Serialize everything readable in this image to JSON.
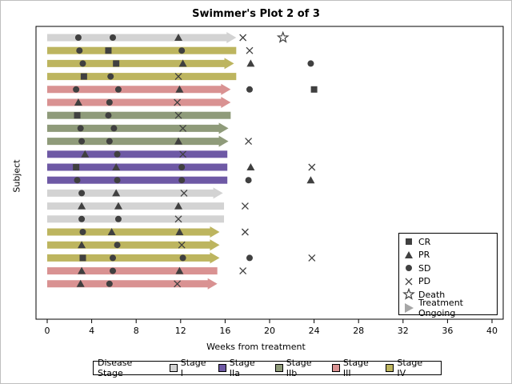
{
  "chart_data": {
    "type": "swimmer",
    "title": "Swimmer's Plot 2 of 3",
    "xlabel": "Weeks from treatment",
    "ylabel": "Subject",
    "xlim": [
      0,
      40
    ],
    "xticks": [
      0,
      4,
      8,
      12,
      16,
      20,
      24,
      28,
      32,
      36,
      40
    ],
    "grid": false,
    "legend_position": "bottom-right",
    "legend": [
      {
        "symbol": "square",
        "label": "CR"
      },
      {
        "symbol": "triangle",
        "label": "PR"
      },
      {
        "symbol": "circle",
        "label": "SD"
      },
      {
        "symbol": "x",
        "label": "PD"
      },
      {
        "symbol": "star",
        "label": "Death"
      },
      {
        "symbol": "arrow",
        "label": "Treatment Ongoing"
      }
    ],
    "stage_legend_title": "Disease Stage",
    "stages": [
      {
        "name": "Stage I",
        "color": "#d3d3d3"
      },
      {
        "name": "Stage IIa",
        "color": "#6e59a5"
      },
      {
        "name": "Stage IIb",
        "color": "#8f9b7a"
      },
      {
        "name": "Stage III",
        "color": "#d99292"
      },
      {
        "name": "Stage IV",
        "color": "#bdb55f"
      }
    ],
    "subjects": [
      {
        "stage": 0,
        "end": 17.0,
        "ongoing": true,
        "events": [
          [
            "circle",
            2.8
          ],
          [
            "circle",
            5.9
          ],
          [
            "triangle",
            11.8
          ],
          [
            "x",
            17.6
          ],
          [
            "star",
            21.2
          ]
        ]
      },
      {
        "stage": 4,
        "end": 17.0,
        "ongoing": false,
        "events": [
          [
            "circle",
            2.9
          ],
          [
            "square",
            5.5
          ],
          [
            "circle",
            12.1
          ],
          [
            "x",
            18.2
          ]
        ]
      },
      {
        "stage": 4,
        "end": 16.8,
        "ongoing": true,
        "events": [
          [
            "circle",
            3.2
          ],
          [
            "square",
            6.2
          ],
          [
            "triangle",
            12.2
          ],
          [
            "triangle",
            18.3
          ],
          [
            "circle",
            23.7
          ]
        ]
      },
      {
        "stage": 4,
        "end": 17.0,
        "ongoing": false,
        "events": [
          [
            "square",
            3.3
          ],
          [
            "circle",
            5.7
          ],
          [
            "x",
            11.8
          ]
        ]
      },
      {
        "stage": 3,
        "end": 16.5,
        "ongoing": true,
        "events": [
          [
            "circle",
            2.6
          ],
          [
            "circle",
            6.4
          ],
          [
            "triangle",
            11.9
          ],
          [
            "circle",
            18.2
          ],
          [
            "square",
            24.0
          ]
        ]
      },
      {
        "stage": 3,
        "end": 16.5,
        "ongoing": true,
        "events": [
          [
            "triangle",
            2.8
          ],
          [
            "circle",
            5.6
          ],
          [
            "x",
            11.7
          ]
        ]
      },
      {
        "stage": 2,
        "end": 16.5,
        "ongoing": false,
        "events": [
          [
            "square",
            2.7
          ],
          [
            "circle",
            5.5
          ],
          [
            "x",
            11.8
          ]
        ]
      },
      {
        "stage": 2,
        "end": 16.3,
        "ongoing": true,
        "events": [
          [
            "circle",
            3.0
          ],
          [
            "circle",
            6.0
          ],
          [
            "x",
            12.2
          ]
        ]
      },
      {
        "stage": 2,
        "end": 16.3,
        "ongoing": true,
        "events": [
          [
            "circle",
            3.1
          ],
          [
            "circle",
            5.6
          ],
          [
            "triangle",
            11.8
          ],
          [
            "x",
            18.1
          ]
        ]
      },
      {
        "stage": 1,
        "end": 16.2,
        "ongoing": false,
        "events": [
          [
            "triangle",
            3.4
          ],
          [
            "circle",
            6.3
          ],
          [
            "x",
            12.2
          ]
        ]
      },
      {
        "stage": 1,
        "end": 16.2,
        "ongoing": false,
        "events": [
          [
            "square",
            2.6
          ],
          [
            "triangle",
            6.2
          ],
          [
            "circle",
            12.1
          ],
          [
            "triangle",
            18.3
          ],
          [
            "x",
            23.8
          ]
        ]
      },
      {
        "stage": 1,
        "end": 16.2,
        "ongoing": false,
        "events": [
          [
            "circle",
            2.7
          ],
          [
            "circle",
            6.3
          ],
          [
            "circle",
            12.1
          ],
          [
            "circle",
            18.1
          ],
          [
            "triangle",
            23.7
          ]
        ]
      },
      {
        "stage": 0,
        "end": 15.8,
        "ongoing": true,
        "events": [
          [
            "circle",
            3.1
          ],
          [
            "triangle",
            6.2
          ],
          [
            "x",
            12.3
          ]
        ]
      },
      {
        "stage": 0,
        "end": 15.9,
        "ongoing": false,
        "events": [
          [
            "triangle",
            3.1
          ],
          [
            "triangle",
            6.4
          ],
          [
            "triangle",
            11.8
          ],
          [
            "x",
            17.8
          ]
        ]
      },
      {
        "stage": 0,
        "end": 15.9,
        "ongoing": false,
        "events": [
          [
            "circle",
            3.1
          ],
          [
            "circle",
            6.4
          ],
          [
            "x",
            11.8
          ]
        ]
      },
      {
        "stage": 4,
        "end": 15.5,
        "ongoing": true,
        "events": [
          [
            "circle",
            3.2
          ],
          [
            "triangle",
            5.8
          ],
          [
            "triangle",
            11.9
          ],
          [
            "x",
            17.8
          ]
        ]
      },
      {
        "stage": 4,
        "end": 15.5,
        "ongoing": true,
        "events": [
          [
            "triangle",
            3.1
          ],
          [
            "circle",
            6.3
          ],
          [
            "x",
            12.1
          ]
        ]
      },
      {
        "stage": 4,
        "end": 15.5,
        "ongoing": true,
        "events": [
          [
            "square",
            3.2
          ],
          [
            "circle",
            5.9
          ],
          [
            "circle",
            12.2
          ],
          [
            "circle",
            18.2
          ],
          [
            "x",
            23.8
          ]
        ]
      },
      {
        "stage": 3,
        "end": 15.3,
        "ongoing": false,
        "events": [
          [
            "triangle",
            3.1
          ],
          [
            "circle",
            5.9
          ],
          [
            "triangle",
            11.9
          ],
          [
            "x",
            17.6
          ]
        ]
      },
      {
        "stage": 3,
        "end": 15.3,
        "ongoing": true,
        "events": [
          [
            "triangle",
            3.0
          ],
          [
            "circle",
            5.6
          ],
          [
            "x",
            11.7
          ]
        ]
      }
    ]
  }
}
